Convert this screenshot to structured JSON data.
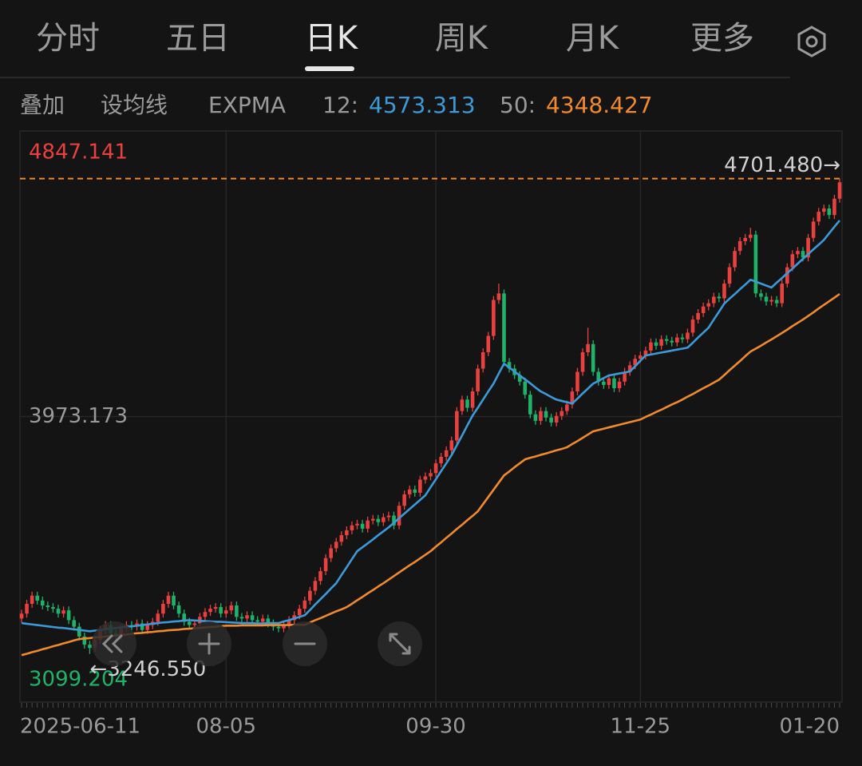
{
  "tabs": [
    "分时",
    "五日",
    "日K",
    "周K",
    "月K",
    "更多"
  ],
  "active_tab": 2,
  "toolbar": [
    "叠加",
    "设均线",
    "EXPMA"
  ],
  "chart_data": {
    "type": "candlestick",
    "categories": [
      "2025-06-11",
      null,
      null,
      null,
      null,
      null,
      null,
      null,
      null,
      null,
      null,
      null,
      null,
      null,
      null,
      null,
      null,
      null,
      null,
      null,
      null,
      null,
      null,
      null,
      null,
      null,
      null,
      null,
      null,
      null,
      null,
      null,
      null,
      null,
      null,
      null,
      null,
      null,
      null,
      "08-05",
      null,
      null,
      null,
      null,
      null,
      null,
      null,
      null,
      null,
      null,
      null,
      null,
      null,
      null,
      null,
      null,
      null,
      null,
      null,
      null,
      null,
      null,
      null,
      null,
      null,
      null,
      null,
      null,
      null,
      null,
      null,
      null,
      null,
      null,
      null,
      null,
      null,
      null,
      null,
      "09-30",
      null,
      null,
      null,
      null,
      null,
      null,
      null,
      null,
      null,
      null,
      null,
      null,
      null,
      null,
      null,
      null,
      null,
      null,
      null,
      null,
      null,
      null,
      null,
      null,
      null,
      null,
      null,
      null,
      null,
      null,
      null,
      null,
      null,
      null,
      null,
      null,
      null,
      null,
      "11-25",
      null,
      null,
      null,
      null,
      null,
      null,
      null,
      null,
      null,
      null,
      null,
      null,
      null,
      null,
      null,
      null,
      null,
      null,
      null,
      null,
      null,
      null,
      null,
      null,
      null,
      null,
      null,
      null,
      null,
      null,
      null,
      null,
      null,
      null,
      null,
      null,
      "01-20",
      null
    ],
    "open": [
      3355,
      3370,
      3400,
      3425,
      3410,
      3395,
      3390,
      3385,
      3370,
      3380,
      3350,
      3330,
      3300,
      3275,
      3265,
      3290,
      3320,
      3335,
      3310,
      3300,
      3325,
      3335,
      3330,
      3340,
      3320,
      3335,
      3345,
      3370,
      3400,
      3425,
      3395,
      3370,
      3345,
      3335,
      3340,
      3360,
      3375,
      3385,
      3390,
      3370,
      3380,
      3395,
      3360,
      3355,
      3365,
      3350,
      3345,
      3355,
      3340,
      3330,
      3325,
      3335,
      3350,
      3365,
      3385,
      3410,
      3440,
      3470,
      3500,
      3540,
      3570,
      3590,
      3610,
      3625,
      3640,
      3645,
      3630,
      3655,
      3660,
      3650,
      3665,
      3670,
      3640,
      3700,
      3735,
      3750,
      3740,
      3780,
      3790,
      3800,
      3830,
      3850,
      3870,
      3900,
      3990,
      4025,
      4000,
      4050,
      4120,
      4170,
      4220,
      4330,
      4350,
      4140,
      4120,
      4100,
      4080,
      4040,
      3980,
      3960,
      3990,
      3970,
      3955,
      3975,
      3990,
      4010,
      4050,
      4110,
      4170,
      4195,
      4110,
      4080,
      4070,
      4090,
      4060,
      4080,
      4110,
      4130,
      4150,
      4160,
      4175,
      4200,
      4190,
      4210,
      4205,
      4200,
      4215,
      4210,
      4230,
      4270,
      4290,
      4310,
      4320,
      4340,
      4335,
      4380,
      4430,
      4480,
      4510,
      4520,
      4530,
      4350,
      4340,
      4325,
      4330,
      4320,
      4380,
      4430,
      4470,
      4480,
      4460,
      4520,
      4570,
      4600,
      4610,
      4590,
      4640
    ],
    "high": [
      3382,
      3412,
      3437,
      3437,
      3422,
      3407,
      3402,
      3397,
      3392,
      3392,
      3362,
      3342,
      3312,
      3287,
      3302,
      3332,
      3347,
      3347,
      3322,
      3337,
      3347,
      3347,
      3352,
      3352,
      3347,
      3357,
      3382,
      3412,
      3437,
      3437,
      3407,
      3382,
      3357,
      3352,
      3372,
      3387,
      3397,
      3402,
      3402,
      3392,
      3407,
      3407,
      3372,
      3377,
      3377,
      3362,
      3367,
      3367,
      3352,
      3342,
      3347,
      3362,
      3377,
      3397,
      3422,
      3452,
      3482,
      3512,
      3552,
      3582,
      3602,
      3622,
      3637,
      3652,
      3657,
      3657,
      3667,
      3672,
      3672,
      3677,
      3682,
      3682,
      3712,
      3747,
      3762,
      3762,
      3792,
      3802,
      3812,
      3842,
      3862,
      3882,
      3912,
      4002,
      4037,
      4037,
      4062,
      4132,
      4182,
      4232,
      4342,
      4380,
      4362,
      4152,
      4132,
      4112,
      4092,
      4052,
      3992,
      4002,
      4002,
      3982,
      3987,
      4002,
      4022,
      4062,
      4122,
      4182,
      4245,
      4207,
      4122,
      4092,
      4102,
      4102,
      4092,
      4122,
      4142,
      4162,
      4172,
      4187,
      4212,
      4212,
      4222,
      4222,
      4217,
      4227,
      4227,
      4242,
      4282,
      4302,
      4322,
      4332,
      4352,
      4352,
      4392,
      4442,
      4492,
      4522,
      4532,
      4551,
      4542,
      4362,
      4352,
      4342,
      4342,
      4392,
      4442,
      4482,
      4492,
      4492,
      4532,
      4582,
      4612,
      4622,
      4622,
      4652,
      4701.48
    ],
    "low": [
      3343,
      3358,
      3388,
      3398,
      3383,
      3378,
      3373,
      3358,
      3358,
      3338,
      3318,
      3288,
      3263,
      3246.55,
      3253,
      3278,
      3308,
      3298,
      3288,
      3288,
      3313,
      3318,
      3318,
      3308,
      3308,
      3323,
      3333,
      3358,
      3388,
      3383,
      3358,
      3333,
      3323,
      3323,
      3328,
      3348,
      3363,
      3373,
      3358,
      3358,
      3368,
      3348,
      3343,
      3343,
      3338,
      3333,
      3333,
      3328,
      3318,
      3313,
      3313,
      3323,
      3338,
      3353,
      3373,
      3398,
      3428,
      3458,
      3488,
      3528,
      3558,
      3578,
      3598,
      3613,
      3628,
      3618,
      3618,
      3643,
      3638,
      3638,
      3653,
      3628,
      3628,
      3688,
      3723,
      3728,
      3728,
      3768,
      3778,
      3788,
      3818,
      3838,
      3858,
      3888,
      3978,
      3988,
      3988,
      4038,
      4108,
      4158,
      4208,
      4318,
      4128,
      4108,
      4088,
      4068,
      4028,
      3968,
      3948,
      3948,
      3958,
      3943,
      3943,
      3963,
      3978,
      3998,
      4038,
      4098,
      4158,
      4098,
      4068,
      4058,
      4058,
      4048,
      4048,
      4068,
      4098,
      4118,
      4138,
      4148,
      4163,
      4178,
      4178,
      4193,
      4188,
      4188,
      4198,
      4198,
      4218,
      4258,
      4278,
      4298,
      4308,
      4323,
      4323,
      4368,
      4418,
      4468,
      4498,
      4508,
      4338,
      4328,
      4313,
      4313,
      4308,
      4308,
      4368,
      4418,
      4458,
      4448,
      4448,
      4508,
      4558,
      4588,
      4578,
      4578,
      4628
    ],
    "close": [
      3370,
      3400,
      3425,
      3410,
      3395,
      3390,
      3385,
      3370,
      3380,
      3350,
      3330,
      3300,
      3275,
      3265,
      3290,
      3320,
      3335,
      3310,
      3300,
      3325,
      3335,
      3330,
      3340,
      3320,
      3335,
      3345,
      3370,
      3400,
      3425,
      3395,
      3370,
      3345,
      3335,
      3340,
      3360,
      3375,
      3385,
      3390,
      3370,
      3380,
      3395,
      3360,
      3355,
      3365,
      3350,
      3345,
      3355,
      3340,
      3330,
      3325,
      3335,
      3350,
      3365,
      3385,
      3410,
      3440,
      3470,
      3500,
      3540,
      3570,
      3590,
      3610,
      3625,
      3640,
      3645,
      3630,
      3655,
      3660,
      3650,
      3665,
      3670,
      3640,
      3700,
      3735,
      3750,
      3740,
      3780,
      3790,
      3800,
      3830,
      3850,
      3870,
      3900,
      3990,
      4025,
      4000,
      4050,
      4120,
      4170,
      4220,
      4330,
      4350,
      4140,
      4120,
      4100,
      4080,
      4040,
      3980,
      3960,
      3990,
      3970,
      3955,
      3975,
      3990,
      4010,
      4050,
      4110,
      4170,
      4195,
      4110,
      4080,
      4070,
      4090,
      4060,
      4080,
      4110,
      4130,
      4150,
      4160,
      4175,
      4200,
      4190,
      4210,
      4205,
      4200,
      4215,
      4210,
      4230,
      4270,
      4290,
      4310,
      4320,
      4340,
      4335,
      4380,
      4430,
      4480,
      4510,
      4520,
      4530,
      4350,
      4340,
      4325,
      4330,
      4320,
      4380,
      4430,
      4470,
      4480,
      4460,
      4520,
      4570,
      4600,
      4610,
      4590,
      4640,
      4690
    ],
    "up_color": "#e8413f",
    "down_color": "#1fb36a",
    "series": [
      {
        "name": "12:",
        "color": "#3d9ad9",
        "values": [
          3341,
          3339,
          3337,
          3335,
          3333,
          3331,
          3329,
          3327,
          3326,
          3324,
          3322,
          3320,
          3318,
          3316,
          3318,
          3320,
          3322,
          3324,
          3326,
          3328,
          3330,
          3331,
          3333,
          3335,
          3337,
          3339,
          3341,
          3343,
          3344,
          3346,
          3347,
          3349,
          3350,
          3349,
          3348,
          3347,
          3346,
          3345,
          3345,
          3344,
          3343,
          3342,
          3341,
          3341,
          3341,
          3340,
          3340,
          3341,
          3341,
          3341,
          3346,
          3350,
          3355,
          3360,
          3365,
          3381,
          3398,
          3414,
          3430,
          3447,
          3463,
          3488,
          3512,
          3537,
          3561,
          3573,
          3585,
          3597,
          3610,
          3622,
          3634,
          3648,
          3662,
          3676,
          3690,
          3704,
          3718,
          3732,
          3757,
          3781,
          3806,
          3830,
          3855,
          3885,
          3915,
          3946,
          3976,
          4000,
          4025,
          4050,
          4074,
          4105,
          4135,
          4123,
          4111,
          4099,
          4087,
          4075,
          4062,
          4050,
          4042,
          4033,
          4025,
          4021,
          4017,
          4013,
          4028,
          4044,
          4059,
          4074,
          4082,
          4091,
          4099,
          4102,
          4105,
          4108,
          4111,
          4127,
          4144,
          4160,
          4163,
          4166,
          4169,
          4172,
          4175,
          4178,
          4181,
          4184,
          4199,
          4215,
          4230,
          4245,
          4270,
          4294,
          4319,
          4334,
          4348,
          4363,
          4377,
          4392,
          4386,
          4380,
          4374,
          4368,
          4383,
          4397,
          4412,
          4426,
          4441,
          4456,
          4470,
          4485,
          4499,
          4514,
          4534,
          4554,
          4573.313
        ]
      },
      {
        "name": "50:",
        "color": "#f08a2c",
        "values": [
          3243,
          3247,
          3252,
          3256,
          3261,
          3265,
          3270,
          3274,
          3279,
          3283,
          3288,
          3292,
          3294,
          3295,
          3297,
          3298,
          3300,
          3302,
          3303,
          3305,
          3306,
          3308,
          3310,
          3311,
          3313,
          3314,
          3316,
          3317,
          3319,
          3320,
          3321,
          3323,
          3324,
          3325,
          3326,
          3328,
          3329,
          3330,
          3332,
          3333,
          3333,
          3333,
          3334,
          3334,
          3334,
          3334,
          3334,
          3335,
          3335,
          3335,
          3335,
          3335,
          3336,
          3336,
          3336,
          3343,
          3350,
          3356,
          3363,
          3370,
          3377,
          3383,
          3390,
          3400,
          3411,
          3421,
          3432,
          3442,
          3453,
          3463,
          3474,
          3485,
          3496,
          3507,
          3518,
          3528,
          3539,
          3550,
          3561,
          3575,
          3588,
          3602,
          3615,
          3629,
          3642,
          3656,
          3669,
          3683,
          3705,
          3727,
          3749,
          3771,
          3793,
          3805,
          3818,
          3830,
          3842,
          3847,
          3851,
          3856,
          3860,
          3865,
          3870,
          3874,
          3879,
          3889,
          3898,
          3908,
          3918,
          3928,
          3932,
          3936,
          3940,
          3944,
          3948,
          3952,
          3956,
          3960,
          3964,
          3972,
          3979,
          3987,
          3994,
          4002,
          4010,
          4017,
          4025,
          4034,
          4042,
          4051,
          4060,
          4068,
          4077,
          4086,
          4100,
          4115,
          4129,
          4143,
          4158,
          4172,
          4181,
          4190,
          4200,
          4209,
          4219,
          4229,
          4239,
          4250,
          4260,
          4270,
          4281,
          4292,
          4304,
          4315,
          4326,
          4337,
          4348.427
        ]
      }
    ],
    "ylim": [
      3099.204,
      4847.141
    ],
    "yticks": [
      4847.141,
      3973.173,
      3099.204
    ],
    "high_marker": {
      "value": 4701.48,
      "label": "4701.480→"
    },
    "low_marker": {
      "value": 3246.55,
      "label": "←3246.550"
    },
    "grid": true
  }
}
